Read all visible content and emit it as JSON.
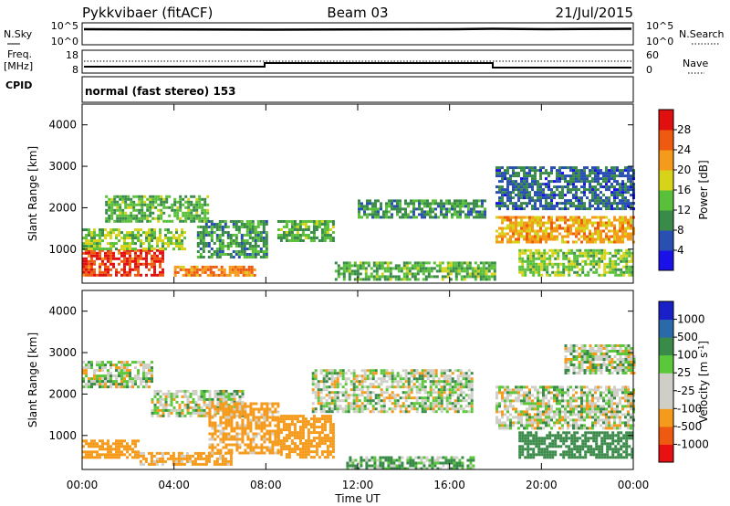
{
  "header": {
    "title": "Pykkvibaer (fitACF)",
    "beam": "Beam 03",
    "date": "21/Jul/2015"
  },
  "strip_nsky": {
    "left_label": "N.Sky",
    "right_label": "N.Search",
    "left_ticks": [
      "10^5",
      "10^0"
    ],
    "right_ticks": [
      "10^5",
      "10^0"
    ]
  },
  "strip_freq": {
    "left_label_1": "Freq.",
    "left_label_2": "[MHz]",
    "right_label": "Nave",
    "left_ticks": [
      "18",
      "8"
    ],
    "right_ticks": [
      "60",
      "0"
    ]
  },
  "strip_cpid": {
    "left_label": "CPID",
    "text": "normal (fast stereo) 153"
  },
  "colorbars": {
    "power": {
      "label": "Power [dB]",
      "ticks": [
        "28",
        "24",
        "20",
        "16",
        "12",
        "8",
        "4"
      ],
      "colors": [
        "#1a10e8",
        "#2a4fb3",
        "#3a8a4a",
        "#5abf3a",
        "#d6d31a",
        "#f59a1a",
        "#ee5a10",
        "#e01010"
      ]
    },
    "velocity": {
      "label": "Velocity [m s",
      "label_sup": "-1",
      "label_end": "]",
      "ticks": [
        "1000",
        "500",
        "100",
        "25",
        "-25",
        "-100",
        "-500",
        "-1000"
      ],
      "colors": [
        "#e81010",
        "#ee5a10",
        "#f59a1a",
        "#cfcfc8",
        "#cfcfc8",
        "#5ac83a",
        "#3a8a4a",
        "#2a6aa8",
        "#1a20c8"
      ]
    }
  },
  "chart_data": [
    {
      "type": "heatmap",
      "panel": "power",
      "ylabel": "Slant Range [km]",
      "y_ticks": [
        "4000",
        "3000",
        "2000",
        "1000"
      ],
      "ylim": [
        180,
        4500
      ],
      "xlim_hours": [
        0,
        24
      ],
      "zlim": [
        0,
        30
      ],
      "zlabel": "Power [dB]",
      "bands": [
        {
          "t0": 0.0,
          "t1": 3.5,
          "r0": 400,
          "r1": 1000,
          "value": 26
        },
        {
          "t0": 0.0,
          "t1": 4.5,
          "r0": 1000,
          "r1": 1500,
          "value": 14
        },
        {
          "t0": 1.0,
          "t1": 5.5,
          "r0": 1700,
          "r1": 2300,
          "value": 12
        },
        {
          "t0": 4.0,
          "t1": 7.5,
          "r0": 400,
          "r1": 600,
          "value": 22
        },
        {
          "t0": 5.0,
          "t1": 8.0,
          "r0": 800,
          "r1": 1700,
          "value": 10
        },
        {
          "t0": 8.5,
          "t1": 11.0,
          "r0": 1200,
          "r1": 1700,
          "value": 12
        },
        {
          "t0": 11.0,
          "t1": 18.0,
          "r0": 300,
          "r1": 700,
          "value": 12
        },
        {
          "t0": 12.0,
          "t1": 17.5,
          "r0": 1800,
          "r1": 2200,
          "value": 10
        },
        {
          "t0": 18.0,
          "t1": 24.0,
          "r0": 1200,
          "r1": 1800,
          "value": 20
        },
        {
          "t0": 18.0,
          "t1": 24.0,
          "r0": 2000,
          "r1": 3000,
          "value": 7
        },
        {
          "t0": 19.0,
          "t1": 24.0,
          "r0": 400,
          "r1": 1000,
          "value": 14
        }
      ]
    },
    {
      "type": "heatmap",
      "panel": "velocity",
      "ylabel": "Slant Range [km]",
      "y_ticks": [
        "4000",
        "3000",
        "2000",
        "1000"
      ],
      "ylim": [
        180,
        4500
      ],
      "xlim_hours": [
        0,
        24
      ],
      "zlim": [
        -1000,
        1000
      ],
      "zlabel": "Velocity [m s-1]",
      "bands": [
        {
          "t0": 0.0,
          "t1": 2.5,
          "r0": 500,
          "r1": 900,
          "value": -300
        },
        {
          "t0": 0.0,
          "t1": 3.0,
          "r0": 2200,
          "r1": 2800,
          "value": 0
        },
        {
          "t0": 2.5,
          "t1": 6.5,
          "r0": 300,
          "r1": 600,
          "value": -200
        },
        {
          "t0": 3.0,
          "t1": 7.0,
          "r0": 1500,
          "r1": 2100,
          "value": 0
        },
        {
          "t0": 5.5,
          "t1": 8.5,
          "r0": 600,
          "r1": 1800,
          "value": -200
        },
        {
          "t0": 8.5,
          "t1": 11.0,
          "r0": 500,
          "r1": 1500,
          "value": -300
        },
        {
          "t0": 11.5,
          "t1": 17.0,
          "r0": 200,
          "r1": 500,
          "value": 100
        },
        {
          "t0": 10.0,
          "t1": 17.0,
          "r0": 1600,
          "r1": 2600,
          "value": 0
        },
        {
          "t0": 18.0,
          "t1": 24.0,
          "r0": 1200,
          "r1": 2200,
          "value": 0
        },
        {
          "t0": 19.0,
          "t1": 24.0,
          "r0": 500,
          "r1": 1100,
          "value": 300
        },
        {
          "t0": 21.0,
          "t1": 24.0,
          "r0": 2500,
          "r1": 3200,
          "value": 0
        }
      ]
    }
  ],
  "x_axis": {
    "ticks": [
      "00:00",
      "04:00",
      "08:00",
      "12:00",
      "16:00",
      "20:00",
      "00:00"
    ],
    "label": "Time UT"
  }
}
